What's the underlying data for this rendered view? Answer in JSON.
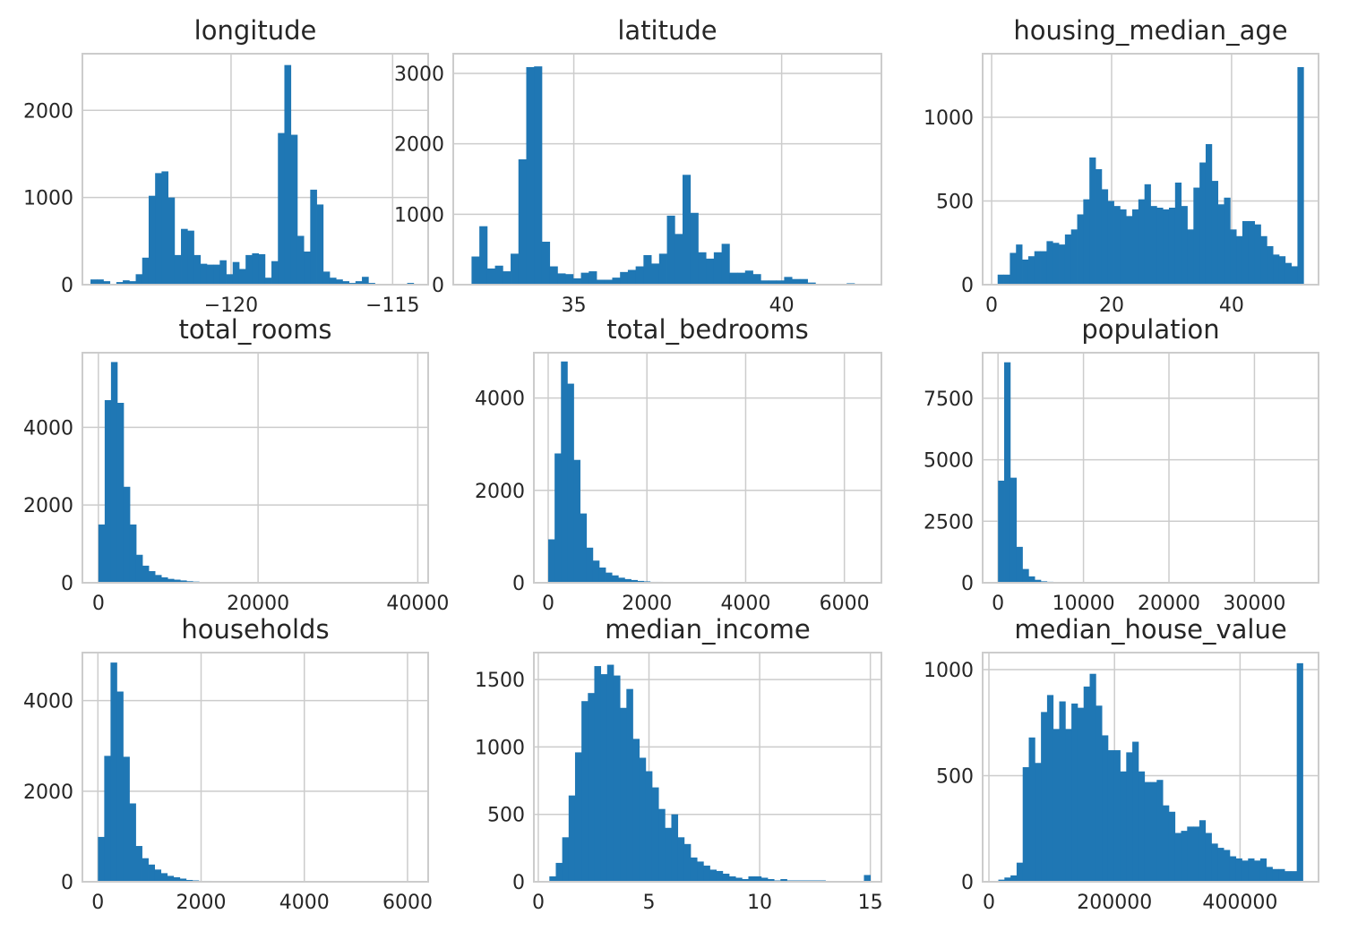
{
  "figure": {
    "bar_color": "#1f77b4",
    "background": "#ffffff",
    "grid_color": "#cccccc"
  },
  "chart_data": [
    {
      "type": "bar",
      "title": "longitude",
      "xlim": [
        -124.6,
        -113.9
      ],
      "ylim": [
        0,
        2650
      ],
      "xticks": [
        -120,
        -115
      ],
      "xtick_labels": [
        "−120",
        "−115"
      ],
      "yticks": [
        0,
        1000,
        2000
      ],
      "ytick_labels": [
        "0",
        "1000",
        "2000"
      ],
      "bin_start": -124.35,
      "bin_width": 0.2,
      "values": [
        60,
        60,
        40,
        10,
        30,
        50,
        40,
        120,
        310,
        1020,
        1280,
        1300,
        1000,
        340,
        640,
        620,
        340,
        240,
        230,
        230,
        280,
        120,
        260,
        180,
        340,
        360,
        350,
        80,
        270,
        1740,
        2520,
        1720,
        560,
        380,
        1090,
        920,
        150,
        80,
        60,
        40,
        20,
        40,
        90,
        20,
        10,
        10,
        10,
        10,
        10,
        20
      ]
    },
    {
      "type": "bar",
      "title": "latitude",
      "xlim": [
        32.1,
        42.4
      ],
      "ylim": [
        0,
        3280
      ],
      "xticks": [
        35,
        40
      ],
      "xtick_labels": [
        "35",
        "40"
      ],
      "yticks": [
        0,
        1000,
        2000,
        3000
      ],
      "ytick_labels": [
        "0",
        "1000",
        "2000",
        "3000"
      ],
      "bin_start": 32.54,
      "bin_width": 0.188,
      "values": [
        400,
        830,
        230,
        270,
        190,
        440,
        1780,
        3090,
        3100,
        610,
        260,
        160,
        150,
        90,
        170,
        190,
        70,
        70,
        100,
        180,
        210,
        260,
        420,
        300,
        440,
        980,
        720,
        1560,
        1020,
        460,
        370,
        460,
        580,
        170,
        170,
        200,
        150,
        60,
        60,
        60,
        110,
        80,
        80,
        30,
        10,
        10,
        10,
        10,
        20,
        10
      ]
    },
    {
      "type": "bar",
      "title": "housing_median_age",
      "xlim": [
        -1.5,
        54.5
      ],
      "ylim": [
        0,
        1380
      ],
      "xticks": [
        0,
        20,
        40
      ],
      "xtick_labels": [
        "0",
        "20",
        "40"
      ],
      "yticks": [
        0,
        500,
        1000
      ],
      "ytick_labels": [
        "0",
        "500",
        "1000"
      ],
      "bin_start": 1,
      "bin_width": 1.02,
      "values": [
        60,
        60,
        190,
        240,
        150,
        170,
        200,
        200,
        260,
        250,
        240,
        300,
        330,
        420,
        510,
        760,
        690,
        570,
        500,
        470,
        450,
        410,
        450,
        510,
        600,
        470,
        460,
        450,
        460,
        610,
        470,
        330,
        580,
        730,
        840,
        620,
        480,
        520,
        330,
        290,
        380,
        380,
        360,
        290,
        230,
        180,
        170,
        130,
        110,
        1300
      ]
    },
    {
      "type": "bar",
      "title": "total_rooms",
      "xlim": [
        -2000,
        41300
      ],
      "ylim": [
        0,
        5920
      ],
      "xticks": [
        0,
        20000,
        40000
      ],
      "xtick_labels": [
        "0",
        "20000",
        "40000"
      ],
      "yticks": [
        0,
        2000,
        4000
      ],
      "ytick_labels": [
        "0",
        "2000",
        "4000"
      ],
      "bin_start": 2,
      "bin_width": 788,
      "values": [
        1500,
        4700,
        5680,
        4630,
        2470,
        1500,
        720,
        440,
        300,
        200,
        140,
        100,
        80,
        60,
        40,
        30,
        20,
        20,
        10,
        10,
        10,
        10,
        10,
        10,
        10,
        10,
        10,
        10,
        5,
        5,
        5,
        5,
        5,
        5,
        5,
        5,
        5,
        5,
        5,
        5,
        5,
        5,
        5,
        5,
        5,
        5,
        5,
        5,
        5,
        5
      ]
    },
    {
      "type": "bar",
      "title": "total_bedrooms",
      "xlim": [
        -290,
        6750
      ],
      "ylim": [
        0,
        4980
      ],
      "xticks": [
        0,
        2000,
        4000,
        6000
      ],
      "xtick_labels": [
        "0",
        "2000",
        "4000",
        "6000"
      ],
      "yticks": [
        0,
        2000,
        4000
      ],
      "ytick_labels": [
        "0",
        "2000",
        "4000"
      ],
      "bin_start": 1,
      "bin_width": 129,
      "values": [
        940,
        2800,
        4790,
        4310,
        2660,
        1500,
        760,
        480,
        330,
        220,
        160,
        110,
        80,
        60,
        40,
        30,
        20,
        20,
        10,
        10,
        10,
        10,
        10,
        10,
        10,
        10,
        10,
        10,
        5,
        5,
        5,
        5,
        5,
        5,
        5,
        5,
        5,
        5,
        5,
        5,
        5,
        5,
        5,
        5,
        5,
        5,
        5,
        5,
        5,
        5
      ]
    },
    {
      "type": "bar",
      "title": "population",
      "xlim": [
        -1800,
        37500
      ],
      "ylim": [
        0,
        9350
      ],
      "xticks": [
        0,
        10000,
        20000,
        30000
      ],
      "xtick_labels": [
        "0",
        "10000",
        "20000",
        "30000"
      ],
      "yticks": [
        0,
        2500,
        5000,
        7500
      ],
      "ytick_labels": [
        "0",
        "2500",
        "5000",
        "7500"
      ],
      "bin_start": 3,
      "bin_width": 714,
      "values": [
        4150,
        8960,
        4270,
        1460,
        560,
        260,
        120,
        60,
        40,
        30,
        20,
        20,
        10,
        10,
        10,
        10,
        10,
        5,
        5,
        5,
        5,
        5,
        5,
        5,
        5,
        5,
        5,
        5,
        5,
        5,
        5,
        5,
        5,
        5,
        5,
        5,
        5,
        5,
        5,
        5,
        5,
        5,
        5,
        5,
        5,
        5,
        5,
        5,
        5,
        5
      ]
    },
    {
      "type": "bar",
      "title": "households",
      "xlim": [
        -300,
        6400
      ],
      "ylim": [
        0,
        5060
      ],
      "xticks": [
        0,
        2000,
        4000,
        6000
      ],
      "xtick_labels": [
        "0",
        "2000",
        "4000",
        "6000"
      ],
      "yticks": [
        0,
        2000,
        4000
      ],
      "ytick_labels": [
        "0",
        "2000",
        "4000"
      ],
      "bin_start": 1,
      "bin_width": 122,
      "values": [
        990,
        2780,
        4840,
        4200,
        2760,
        1730,
        790,
        520,
        380,
        270,
        190,
        130,
        100,
        70,
        40,
        30,
        20,
        20,
        10,
        10,
        10,
        10,
        10,
        10,
        10,
        10,
        5,
        5,
        5,
        5,
        5,
        5,
        5,
        5,
        5,
        5,
        5,
        5,
        5,
        5,
        5,
        5,
        5,
        5,
        5,
        5,
        5,
        5,
        5,
        5
      ]
    },
    {
      "type": "bar",
      "title": "median_income",
      "xlim": [
        -0.2,
        15.5
      ],
      "ylim": [
        0,
        1700
      ],
      "xticks": [
        0,
        5,
        10,
        15
      ],
      "xtick_labels": [
        "0",
        "5",
        "10",
        "15"
      ],
      "yticks": [
        0,
        500,
        1000,
        1500
      ],
      "ytick_labels": [
        "0",
        "500",
        "1000",
        "1500"
      ],
      "bin_start": 0.5,
      "bin_width": 0.29,
      "values": [
        40,
        140,
        330,
        640,
        960,
        1340,
        1400,
        1600,
        1540,
        1610,
        1530,
        1290,
        1430,
        1060,
        920,
        820,
        700,
        540,
        400,
        500,
        330,
        280,
        180,
        150,
        120,
        90,
        80,
        60,
        40,
        30,
        20,
        40,
        40,
        30,
        20,
        10,
        20,
        10,
        10,
        10,
        10,
        10,
        10,
        5,
        5,
        5,
        5,
        5,
        5,
        50
      ]
    },
    {
      "type": "bar",
      "title": "median_house_value",
      "xlim": [
        -10000,
        525000
      ],
      "ylim": [
        0,
        1080
      ],
      "xticks": [
        0,
        200000,
        400000
      ],
      "xtick_labels": [
        "0",
        "200000",
        "400000"
      ],
      "yticks": [
        0,
        500,
        1000
      ],
      "ytick_labels": [
        "0",
        "500",
        "1000"
      ],
      "bin_start": 15000,
      "bin_width": 9700,
      "values": [
        10,
        20,
        30,
        90,
        540,
        680,
        560,
        800,
        880,
        720,
        850,
        720,
        840,
        820,
        920,
        980,
        830,
        690,
        620,
        620,
        520,
        610,
        660,
        520,
        470,
        470,
        480,
        360,
        330,
        230,
        240,
        260,
        260,
        290,
        230,
        180,
        160,
        150,
        120,
        110,
        100,
        110,
        100,
        110,
        70,
        60,
        60,
        50,
        50,
        1030
      ]
    }
  ]
}
